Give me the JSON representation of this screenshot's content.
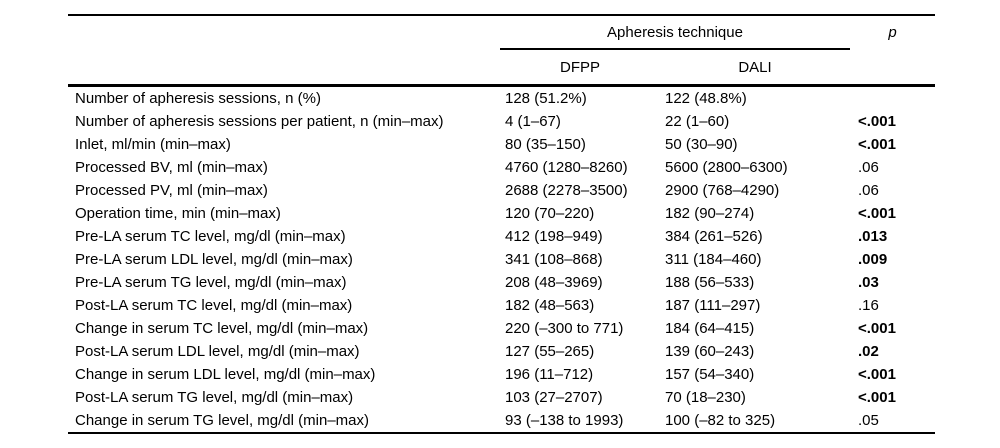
{
  "table": {
    "header": {
      "group_label": "Apheresis technique",
      "col_dfpp": "DFPP",
      "col_dali": "DALI",
      "p_label": "p"
    },
    "colors": {
      "text": "#000000",
      "background": "#ffffff",
      "rule": "#000000"
    },
    "rows": [
      {
        "label": "Number of apheresis sessions, n (%)",
        "dfpp": "128 (51.2%)",
        "dali": "122 (48.8%)",
        "p": "",
        "p_bold": false
      },
      {
        "label": "Number of apheresis sessions per patient, n (min–max)",
        "dfpp": "4 (1–67)",
        "dali": "22 (1–60)",
        "p": "<.001",
        "p_bold": true
      },
      {
        "label": "Inlet, ml/min (min–max)",
        "dfpp": "80 (35–150)",
        "dali": "50 (30–90)",
        "p": "<.001",
        "p_bold": true
      },
      {
        "label": "Processed BV, ml (min–max)",
        "dfpp": "4760 (1280–8260)",
        "dali": "5600 (2800–6300)",
        "p": ".06",
        "p_bold": false
      },
      {
        "label": "Processed PV, ml (min–max)",
        "dfpp": "2688 (2278–3500)",
        "dali": "2900 (768–4290)",
        "p": ".06",
        "p_bold": false
      },
      {
        "label": "Operation time, min (min–max)",
        "dfpp": "120 (70–220)",
        "dali": "182 (90–274)",
        "p": "<.001",
        "p_bold": true
      },
      {
        "label": "Pre-LA serum TC level, mg/dl (min–max)",
        "dfpp": "412 (198–949)",
        "dali": "384 (261–526)",
        "p": ".013",
        "p_bold": true
      },
      {
        "label": "Pre-LA serum LDL level, mg/dl (min–max)",
        "dfpp": "341 (108–868)",
        "dali": "311 (184–460)",
        "p": ".009",
        "p_bold": true
      },
      {
        "label": "Pre-LA serum TG level, mg/dl (min–max)",
        "dfpp": "208 (48–3969)",
        "dali": "188 (56–533)",
        "p": ".03",
        "p_bold": true
      },
      {
        "label": "Post-LA serum TC level, mg/dl (min–max)",
        "dfpp": "182 (48–563)",
        "dali": "187 (111–297)",
        "p": ".16",
        "p_bold": false
      },
      {
        "label": "Change in serum TC level, mg/dl (min–max)",
        "dfpp": "220 (–300 to 771)",
        "dali": "184 (64–415)",
        "p": "<.001",
        "p_bold": true
      },
      {
        "label": "Post-LA serum LDL level, mg/dl (min–max)",
        "dfpp": "127 (55–265)",
        "dali": "139 (60–243)",
        "p": ".02",
        "p_bold": true
      },
      {
        "label": "Change in serum LDL level, mg/dl (min–max)",
        "dfpp": "196 (11–712)",
        "dali": "157 (54–340)",
        "p": "<.001",
        "p_bold": true
      },
      {
        "label": "Post-LA serum TG level, mg/dl (min–max)",
        "dfpp": "103 (27–2707)",
        "dali": "70 (18–230)",
        "p": "<.001",
        "p_bold": true
      },
      {
        "label": "Change in serum TG level, mg/dl (min–max)",
        "dfpp": "93 (–138 to 1993)",
        "dali": "100 (–82 to 325)",
        "p": ".05",
        "p_bold": false
      }
    ]
  }
}
